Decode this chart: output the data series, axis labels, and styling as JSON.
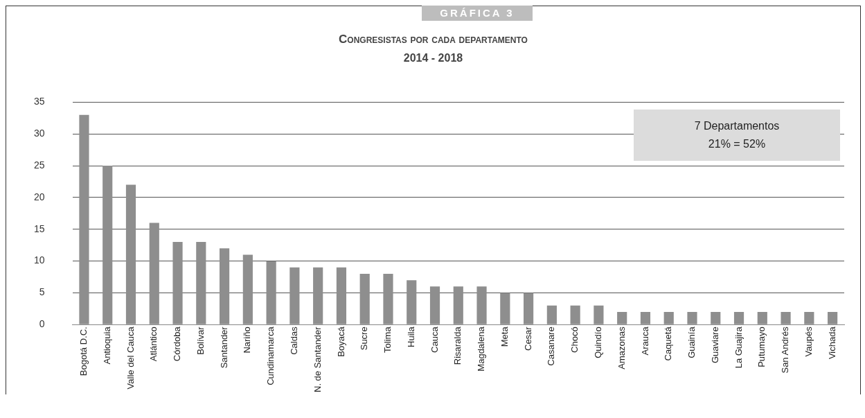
{
  "chart_data": {
    "type": "bar",
    "title": "Congresistas por cada departamento",
    "subtitle": "2014 - 2018",
    "annotations": [
      "GRÁFICA 3",
      "7 Departamentos",
      "21% = 52%"
    ],
    "categories": [
      "Bogotá D.C.",
      "Antioquia",
      "Valle del Cauca",
      "Atlántico",
      "Córdoba",
      "Bolívar",
      "Santander",
      "Nariño",
      "Cundinamarca",
      "Caldas",
      "N. de Santander",
      "Boyacá",
      "Sucre",
      "Tolima",
      "Huila",
      "Cauca",
      "Risaralda",
      "Magdalena",
      "Meta",
      "Cesar",
      "Casanare",
      "Chocó",
      "Quindío",
      "Amazonas",
      "Arauca",
      "Caquetá",
      "Guainía",
      "Guaviare",
      "La Guajira",
      "Putumayo",
      "San Andrés",
      "Vaupés",
      "Vichada"
    ],
    "values": [
      33,
      25,
      22,
      16,
      13,
      13,
      12,
      11,
      10,
      9,
      9,
      9,
      8,
      8,
      7,
      6,
      6,
      6,
      5,
      5,
      3,
      3,
      3,
      2,
      2,
      2,
      2,
      2,
      2,
      2,
      2,
      2,
      2
    ],
    "color": "#8e8e8e",
    "ylim": [
      0,
      35
    ],
    "yticks": [
      0,
      5,
      10,
      15,
      20,
      25,
      30,
      35
    ],
    "grid": "y",
    "legend": false
  }
}
